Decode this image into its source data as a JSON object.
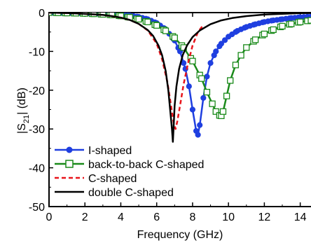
{
  "chart_data": {
    "type": "line",
    "xlabel": "Frequency (GHz)",
    "ylabel_parts": [
      "|S",
      "21",
      "| (dB)"
    ],
    "xlim": [
      0,
      14.6
    ],
    "ylim": [
      -50,
      0
    ],
    "xticks": [
      0,
      2,
      4,
      6,
      8,
      10,
      12,
      14
    ],
    "yticks": [
      0,
      -10,
      -20,
      -30,
      -40,
      -50
    ],
    "grid": false,
    "legend_placement": "lower-left",
    "series": [
      {
        "name": "I-shaped",
        "color": "#1f3fe0",
        "style": "solid-circle",
        "x": [
          0,
          0.5,
          1,
          1.5,
          2,
          2.5,
          3,
          3.5,
          4,
          4.5,
          5,
          5.5,
          6,
          6.5,
          7,
          7.3,
          7.6,
          7.8,
          8.0,
          8.2,
          8.3,
          8.4,
          8.6,
          8.8,
          9.0,
          9.3,
          9.6,
          10,
          10.5,
          11,
          11.5,
          12,
          12.5,
          13,
          13.5,
          14,
          14.6
        ],
        "y": [
          0,
          -0.02,
          -0.05,
          -0.08,
          -0.12,
          -0.18,
          -0.25,
          -0.35,
          -0.5,
          -0.75,
          -1.1,
          -1.7,
          -2.7,
          -4.3,
          -7.2,
          -10.0,
          -14.5,
          -19.0,
          -25.0,
          -30.5,
          -31.5,
          -29.0,
          -22.0,
          -16.5,
          -13.0,
          -10.0,
          -8.0,
          -6.2,
          -4.7,
          -3.7,
          -3.0,
          -2.4,
          -2.0,
          -1.7,
          -1.4,
          -1.2,
          -1.0
        ]
      },
      {
        "name": "back-to-back C-shaped",
        "color": "#1a8a1a",
        "style": "solid-open-square",
        "x": [
          0,
          0.5,
          1,
          1.5,
          2,
          2.5,
          3,
          3.5,
          4,
          4.5,
          5,
          5.5,
          6,
          6.5,
          7,
          7.5,
          8,
          8.5,
          8.8,
          9.1,
          9.3,
          9.5,
          9.6,
          9.7,
          9.9,
          10.1,
          10.4,
          10.7,
          11,
          11.5,
          12,
          12.5,
          13,
          13.5,
          14,
          14.6
        ],
        "y": [
          0,
          -0.05,
          -0.1,
          -0.15,
          -0.2,
          -0.3,
          -0.45,
          -0.6,
          -0.85,
          -1.2,
          -1.7,
          -2.4,
          -3.3,
          -4.7,
          -6.5,
          -9.0,
          -12.5,
          -17.0,
          -20.5,
          -23.5,
          -25.5,
          -26.5,
          -26.6,
          -25.5,
          -21.5,
          -17.5,
          -13.5,
          -11.0,
          -9.0,
          -7.0,
          -5.5,
          -4.4,
          -3.5,
          -2.9,
          -2.4,
          -2.0
        ]
      },
      {
        "name": "C-shaped",
        "color": "#e8141b",
        "style": "dashed",
        "x": [
          0,
          1,
          2,
          3,
          4,
          4.5,
          5,
          5.5,
          6,
          6.3,
          6.6,
          6.8,
          6.95,
          7.05,
          7.15,
          7.3,
          7.5,
          7.75,
          8.0,
          8.3,
          8.6
        ],
        "y": [
          0,
          -0.1,
          -0.3,
          -0.6,
          -1.3,
          -1.9,
          -2.9,
          -4.6,
          -8.0,
          -12.0,
          -18.0,
          -24.0,
          -28.5,
          -30.0,
          -28.0,
          -24.0,
          -18.5,
          -13.0,
          -8.5,
          -5.0,
          -3.2
        ]
      },
      {
        "name": "double C-shaped",
        "color": "#000000",
        "style": "solid",
        "x": [
          0,
          1,
          2,
          3,
          3.5,
          4,
          4.5,
          5,
          5.5,
          5.8,
          6.1,
          6.3,
          6.5,
          6.65,
          6.75,
          6.85,
          6.9,
          6.95,
          7.0,
          7.1,
          7.25,
          7.45,
          7.7,
          8.0,
          8.4,
          9.0,
          9.6,
          10.2,
          11,
          12,
          13,
          14,
          14.6
        ],
        "y": [
          0,
          -0.1,
          -0.3,
          -0.6,
          -0.9,
          -1.3,
          -1.9,
          -2.9,
          -4.5,
          -6.0,
          -8.5,
          -11.0,
          -15.0,
          -20.0,
          -25.0,
          -30.0,
          -33.3,
          -29.0,
          -24.0,
          -19.0,
          -14.5,
          -11.0,
          -8.4,
          -6.3,
          -4.6,
          -3.0,
          -2.0,
          -1.4,
          -0.9,
          -0.5,
          -0.3,
          -0.15,
          -0.1
        ]
      }
    ]
  }
}
